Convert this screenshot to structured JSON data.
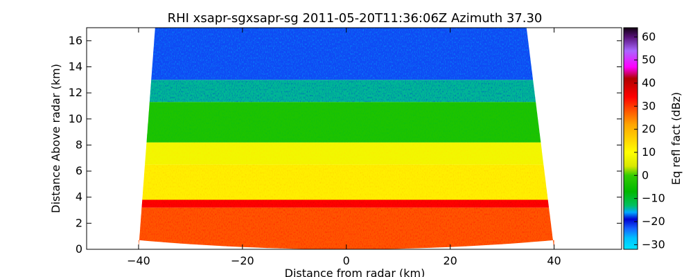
{
  "chart_data": {
    "type": "heatmap",
    "title": "RHI xsapr-sgxsapr-sg 2011-05-20T11:36:06Z Azimuth 37.30",
    "xlabel": "Distance from radar (km)",
    "ylabel": "Distance Above radar  (km)",
    "xlim": [
      -50,
      53
    ],
    "ylim": [
      0,
      17
    ],
    "x_ticks": [
      -40,
      -20,
      0,
      20,
      40
    ],
    "x_tick_labels": [
      "−40",
      "−20",
      "0",
      "20",
      "40"
    ],
    "y_ticks": [
      0,
      2,
      4,
      6,
      8,
      10,
      12,
      14,
      16
    ],
    "y_tick_labels": [
      "0",
      "2",
      "4",
      "6",
      "8",
      "10",
      "12",
      "14",
      "16"
    ],
    "grid": false,
    "colorbar": {
      "label": "Eq refl fact (dBz)",
      "range": [
        -32,
        64
      ],
      "ticks": [
        -30,
        -20,
        -10,
        0,
        10,
        20,
        30,
        40,
        50,
        60
      ],
      "tick_labels": [
        "−30",
        "−20",
        "−10",
        "0",
        "10",
        "20",
        "30",
        "40",
        "50",
        "60"
      ],
      "colors": [
        {
          "v": -32,
          "c": "#00e5ff"
        },
        {
          "v": -27,
          "c": "#00bfff"
        },
        {
          "v": -23,
          "c": "#1463ff"
        },
        {
          "v": -19,
          "c": "#0000d0"
        },
        {
          "v": -16,
          "c": "#00a8ff"
        },
        {
          "v": -13,
          "c": "#00c060"
        },
        {
          "v": -7,
          "c": "#00b800"
        },
        {
          "v": 0,
          "c": "#33cc00"
        },
        {
          "v": 4,
          "c": "#d8e800"
        },
        {
          "v": 10,
          "c": "#ffff00"
        },
        {
          "v": 15,
          "c": "#ffd800"
        },
        {
          "v": 22,
          "c": "#ffa500"
        },
        {
          "v": 28,
          "c": "#ff5500"
        },
        {
          "v": 34,
          "c": "#ff0000"
        },
        {
          "v": 42,
          "c": "#b00000"
        },
        {
          "v": 47,
          "c": "#ff00ff"
        },
        {
          "v": 54,
          "c": "#aa66ff"
        },
        {
          "v": 60,
          "c": "#551177"
        },
        {
          "v": 64,
          "c": "#110011"
        }
      ]
    },
    "scan": {
      "x_range": [
        -40,
        40
      ],
      "top_edges_at_y16": [
        -37,
        35
      ]
    },
    "layers": [
      {
        "y_from": 0,
        "y_to": 3.2,
        "dbz": 28
      },
      {
        "y_from": 3.2,
        "y_to": 3.8,
        "dbz": 34
      },
      {
        "y_from": 3.8,
        "y_to": 6.5,
        "dbz": 12
      },
      {
        "y_from": 6.5,
        "y_to": 8.2,
        "dbz": 8
      },
      {
        "y_from": 8.2,
        "y_to": 11.3,
        "dbz": -3
      },
      {
        "y_from": 11.3,
        "y_to": 13.0,
        "dbz": -14
      },
      {
        "y_from": 13.0,
        "y_to": 17.0,
        "dbz": -22
      }
    ]
  }
}
